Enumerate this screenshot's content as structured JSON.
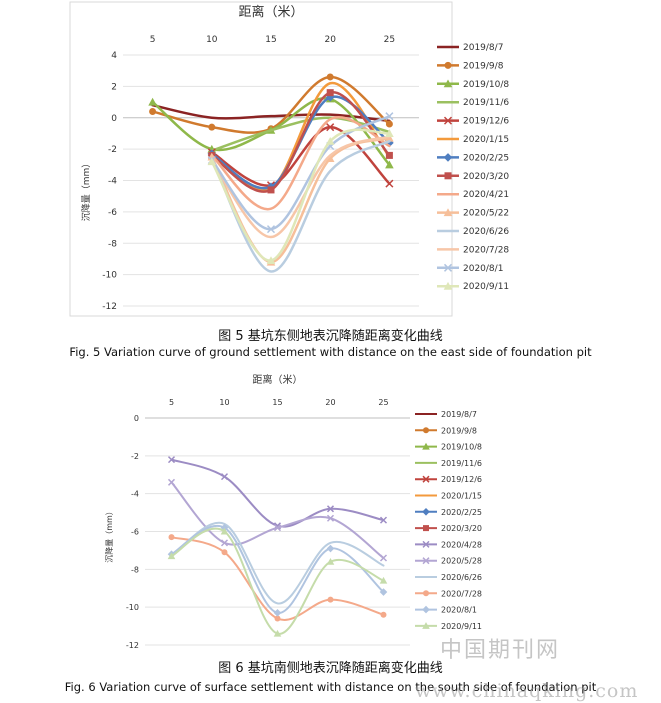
{
  "figures": [
    {
      "caption_cn": "图 5 基坑东侧地表沉降随距离变化曲线",
      "caption_en": "Fig. 5 Variation curve of ground settlement with distance on the east side of foundation pit"
    },
    {
      "caption_cn": "图 6 基坑南侧地表沉降随距离变化曲线",
      "caption_en": "Fig. 6 Variation curve of surface settlement with distance on the south side of foundation pit"
    }
  ],
  "watermark": {
    "cn": "中国期刊网",
    "url": "www.chinaqking.com"
  },
  "chart_data": [
    {
      "type": "line",
      "xlabel": "距离（米）",
      "ylabel": "沉降量（mm）",
      "x": [
        5,
        10,
        15,
        20,
        25
      ],
      "ylim": [
        -12,
        4
      ],
      "yticks": [
        4,
        2,
        0,
        -2,
        -4,
        -6,
        -8,
        -10,
        -12
      ],
      "legend_position": "right",
      "series": [
        {
          "name": "2019/8/7",
          "color": "#8b2323",
          "marker": "none",
          "values": [
            0.8,
            0.0,
            0.1,
            0.2,
            -0.2
          ]
        },
        {
          "name": "2019/9/8",
          "color": "#d07a2e",
          "marker": "circle",
          "values": [
            0.4,
            -0.6,
            -0.7,
            2.6,
            -0.4
          ]
        },
        {
          "name": "2019/10/8",
          "color": "#8fb84a",
          "marker": "triangle",
          "values": [
            1.0,
            -2.0,
            -0.8,
            1.2,
            -3.0
          ]
        },
        {
          "name": "2019/11/6",
          "color": "#9bc060",
          "marker": "none",
          "values": [
            null,
            -2.1,
            -0.8,
            0.0,
            -0.9
          ]
        },
        {
          "name": "2019/12/6",
          "color": "#c0433d",
          "marker": "x",
          "values": [
            null,
            -2.2,
            -4.3,
            -0.6,
            -4.2
          ]
        },
        {
          "name": "2020/1/15",
          "color": "#f39a3c",
          "marker": "none",
          "values": [
            null,
            -2.3,
            -4.5,
            2.2,
            -2.5
          ]
        },
        {
          "name": "2020/2/25",
          "color": "#4f7ec0",
          "marker": "diamond",
          "values": [
            null,
            -2.3,
            -4.4,
            1.3,
            -1.6
          ]
        },
        {
          "name": "2020/3/20",
          "color": "#c0504d",
          "marker": "square",
          "values": [
            null,
            -2.4,
            -4.6,
            1.6,
            -2.4
          ]
        },
        {
          "name": "2020/4/21",
          "color": "#f4a98a",
          "marker": "none",
          "values": [
            null,
            -2.4,
            -5.8,
            -0.1,
            -1.8
          ]
        },
        {
          "name": "2020/5/22",
          "color": "#f6bf9a",
          "marker": "triangle",
          "values": [
            null,
            -2.5,
            -9.2,
            -2.6,
            -1.3
          ]
        },
        {
          "name": "2020/6/26",
          "color": "#b9cde0",
          "marker": "none",
          "values": [
            null,
            -2.6,
            -9.8,
            -3.4,
            -1.5
          ]
        },
        {
          "name": "2020/7/28",
          "color": "#f7c6a8",
          "marker": "none",
          "values": [
            null,
            -2.7,
            -7.6,
            -2.4,
            -1.2
          ]
        },
        {
          "name": "2020/8/1",
          "color": "#b0c4e0",
          "marker": "x",
          "values": [
            null,
            -2.7,
            -7.1,
            -1.8,
            0.1
          ]
        },
        {
          "name": "2020/9/11",
          "color": "#dfe7b8",
          "marker": "triangle",
          "values": [
            null,
            -2.8,
            -9.1,
            -1.5,
            -1.0
          ]
        }
      ]
    },
    {
      "type": "line",
      "xlabel": "距离（米）",
      "ylabel": "沉降量（mm）",
      "x": [
        5,
        10,
        15,
        20,
        25
      ],
      "ylim": [
        -12,
        0
      ],
      "yticks": [
        0,
        -2,
        -4,
        -6,
        -8,
        -10,
        -12
      ],
      "legend_position": "right",
      "series": [
        {
          "name": "2019/8/7",
          "color": "#8b2323",
          "marker": "none",
          "values": [
            null,
            null,
            null,
            null,
            null
          ]
        },
        {
          "name": "2019/9/8",
          "color": "#d07a2e",
          "marker": "circle",
          "values": [
            null,
            null,
            null,
            null,
            null
          ]
        },
        {
          "name": "2019/10/8",
          "color": "#8fb84a",
          "marker": "triangle",
          "values": [
            null,
            null,
            null,
            null,
            null
          ]
        },
        {
          "name": "2019/11/6",
          "color": "#9bc060",
          "marker": "none",
          "values": [
            null,
            null,
            null,
            null,
            null
          ]
        },
        {
          "name": "2019/12/6",
          "color": "#c0433d",
          "marker": "x",
          "values": [
            null,
            null,
            null,
            null,
            null
          ]
        },
        {
          "name": "2020/1/15",
          "color": "#f39a3c",
          "marker": "none",
          "values": [
            null,
            null,
            null,
            null,
            null
          ]
        },
        {
          "name": "2020/2/25",
          "color": "#4f7ec0",
          "marker": "diamond",
          "values": [
            null,
            null,
            null,
            null,
            null
          ]
        },
        {
          "name": "2020/3/20",
          "color": "#c0504d",
          "marker": "square",
          "values": [
            null,
            null,
            null,
            null,
            null
          ]
        },
        {
          "name": "2020/4/28",
          "color": "#9c8cc4",
          "marker": "x",
          "values": [
            -2.2,
            -3.1,
            -5.7,
            -4.8,
            -5.4
          ]
        },
        {
          "name": "2020/5/28",
          "color": "#b3a6d3",
          "marker": "x",
          "values": [
            -3.4,
            -6.6,
            -5.8,
            -5.3,
            -7.4
          ]
        },
        {
          "name": "2020/6/26",
          "color": "#b9cde0",
          "marker": "none",
          "values": [
            -7.3,
            -5.6,
            -9.8,
            -6.6,
            -7.8
          ]
        },
        {
          "name": "2020/7/28",
          "color": "#f4a98a",
          "marker": "circle",
          "values": [
            -6.3,
            -7.1,
            -10.6,
            -9.6,
            -10.4
          ]
        },
        {
          "name": "2020/8/1",
          "color": "#b0c4e0",
          "marker": "diamond",
          "values": [
            -7.2,
            -5.8,
            -10.3,
            -6.9,
            -9.2
          ]
        },
        {
          "name": "2020/9/11",
          "color": "#c5dcaa",
          "marker": "triangle",
          "values": [
            -7.3,
            -6.0,
            -11.4,
            -7.6,
            -8.6
          ]
        }
      ]
    }
  ]
}
